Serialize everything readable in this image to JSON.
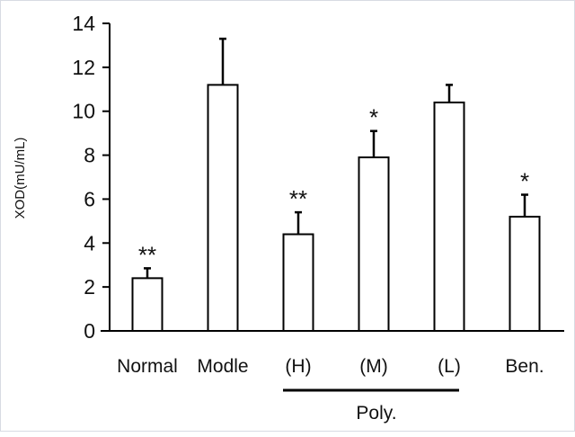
{
  "chart_data": {
    "type": "bar",
    "title": "",
    "xlabel": "",
    "ylabel": "XOD(mU/mL)",
    "ylim": [
      0,
      14
    ],
    "yticks": [
      "0",
      "2",
      "4",
      "6",
      "8",
      "10",
      "12",
      "14"
    ],
    "categories": [
      "Normal",
      "Modle",
      "(H)",
      "(M)",
      "(L)",
      "Ben."
    ],
    "values": [
      2.4,
      11.2,
      4.4,
      7.9,
      10.4,
      5.2
    ],
    "error": [
      0.45,
      2.1,
      1.0,
      1.2,
      0.8,
      1.0
    ],
    "significance": [
      "**",
      "",
      "**",
      "*",
      "",
      "*"
    ],
    "group_label": {
      "text": "Poly.",
      "categories": [
        "(H)",
        "(M)",
        "(L)"
      ]
    },
    "grid": false,
    "bar_fill": "#ffffff",
    "bar_stroke": "#000000"
  }
}
